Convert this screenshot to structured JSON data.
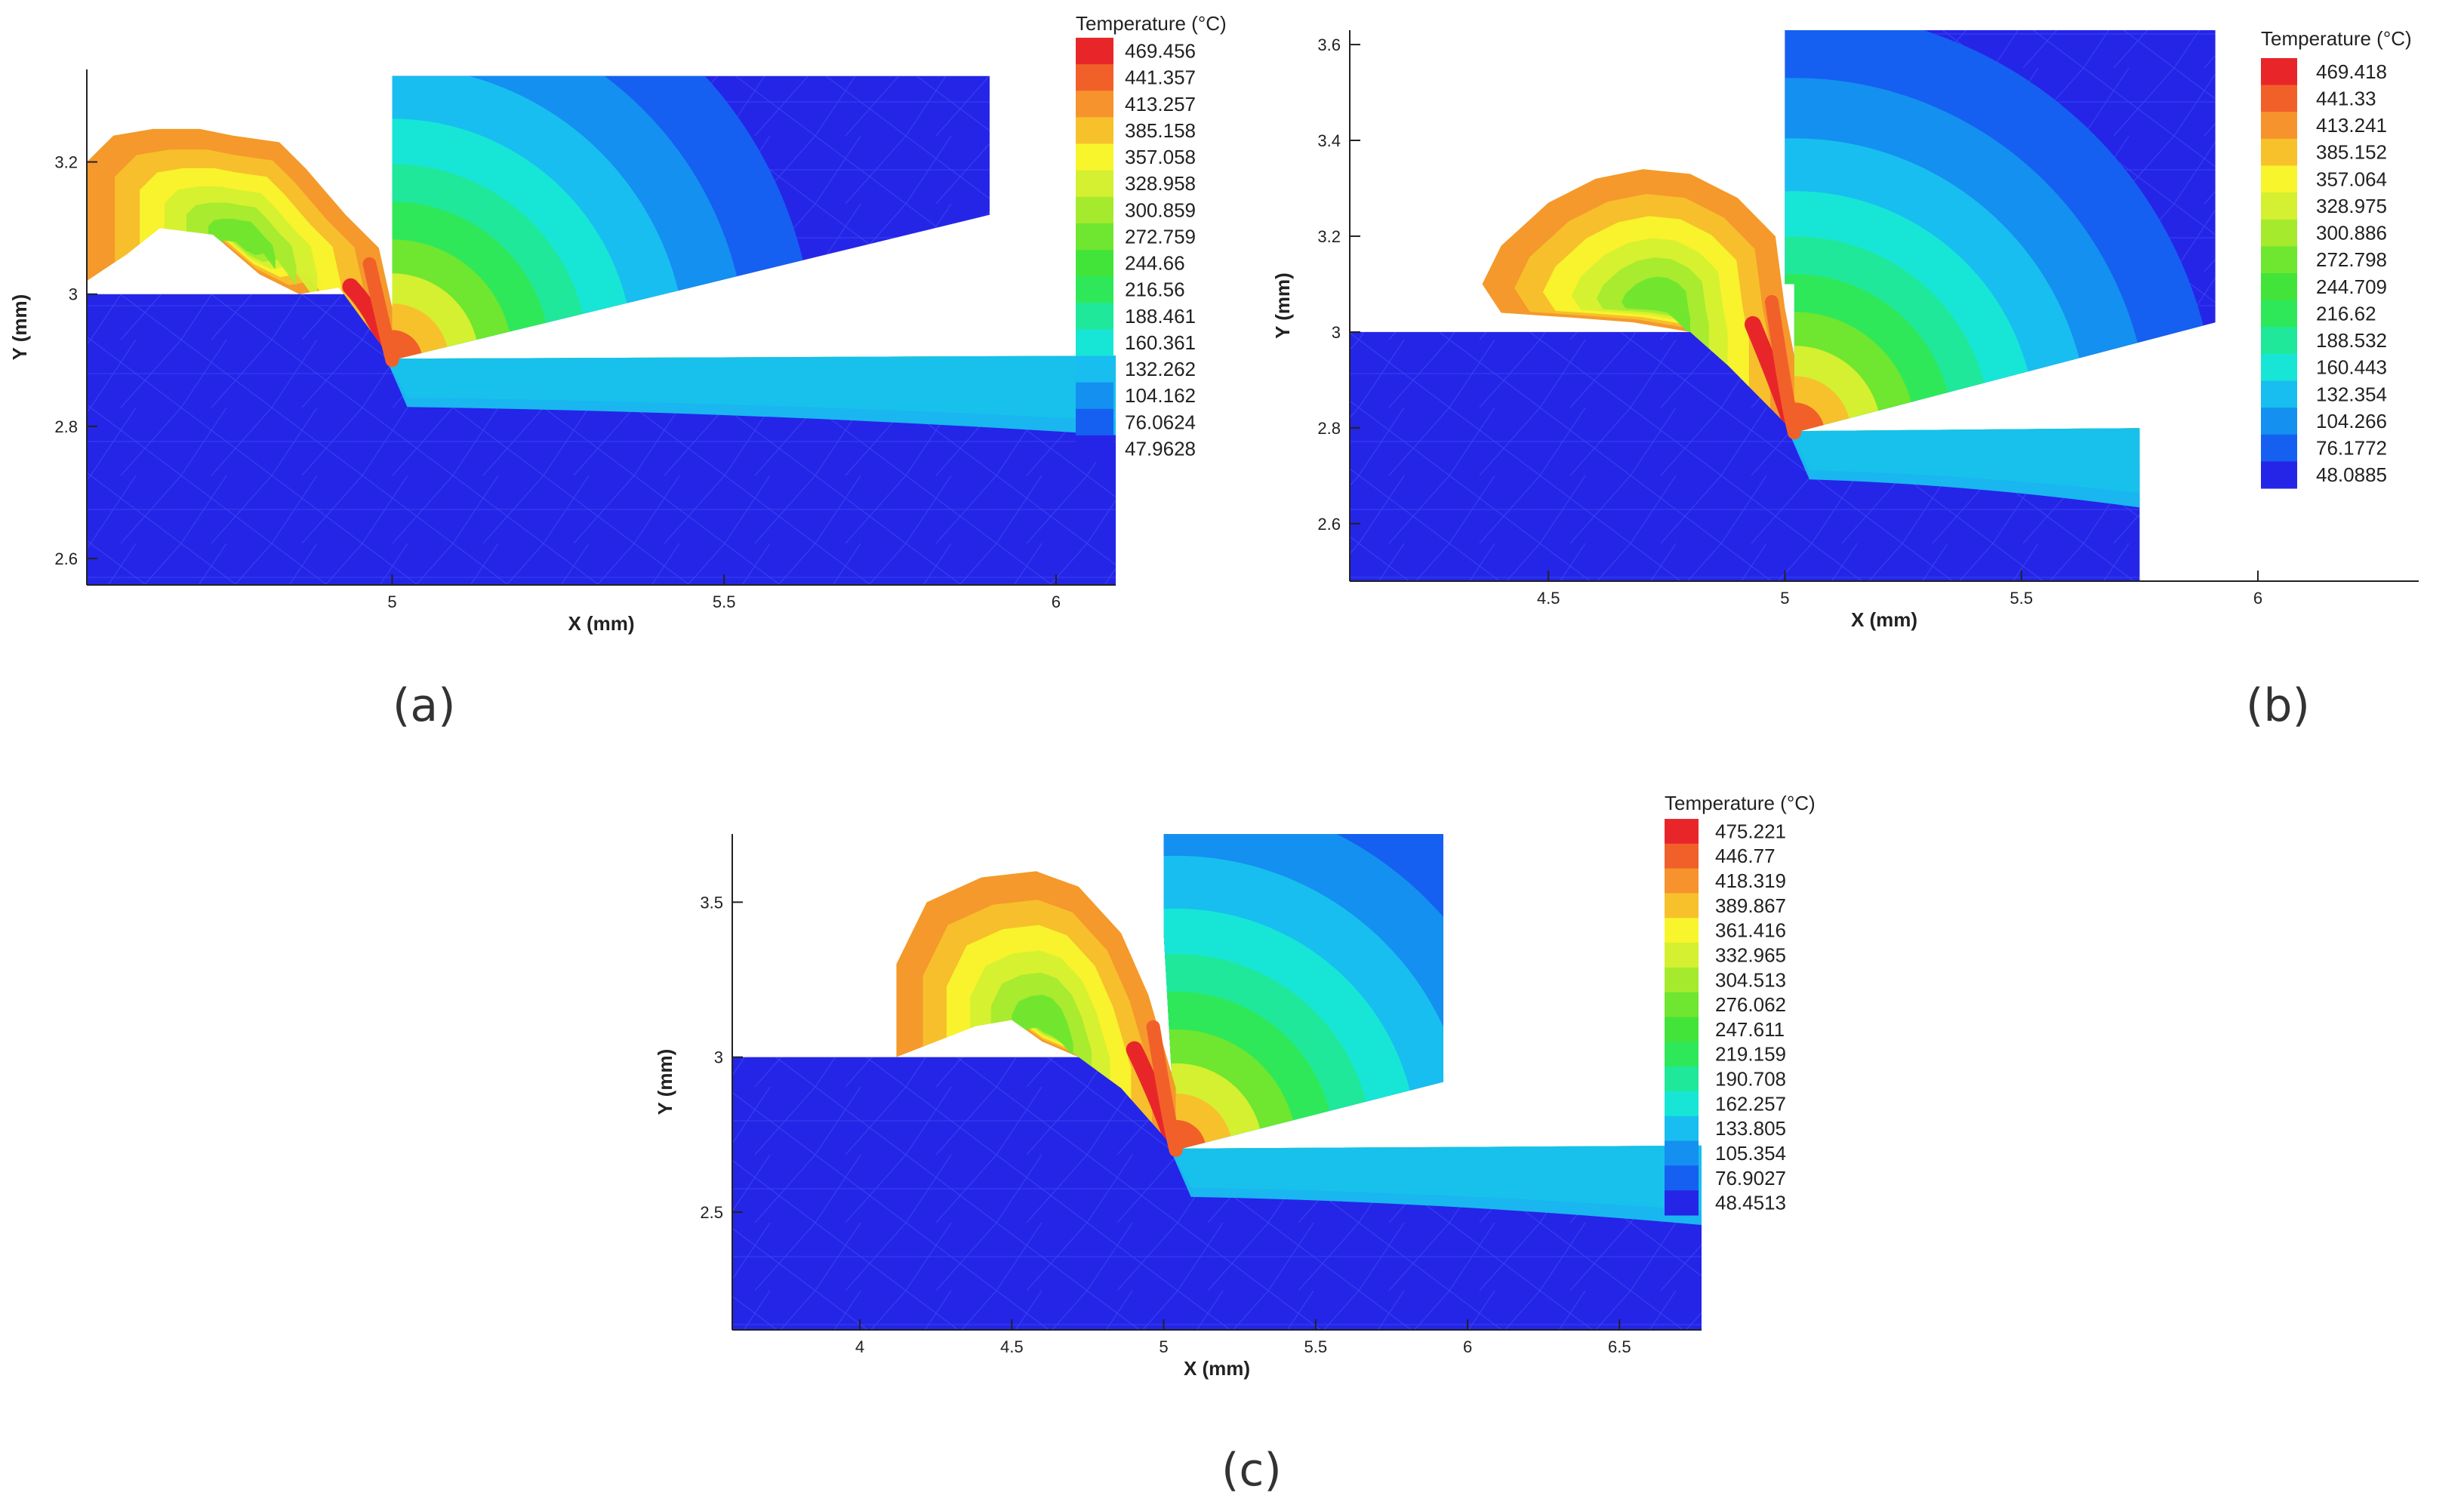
{
  "colors": {
    "scale": [
      "#2525e8",
      "#1560f0",
      "#1490f0",
      "#18bef0",
      "#17e6d6",
      "#1fe89a",
      "#2fe85a",
      "#43e43a",
      "#6fe62f",
      "#a6ea2e",
      "#d4f030",
      "#f8f52c",
      "#f7c12c",
      "#f7932c",
      "#f2602a",
      "#e8262a"
    ],
    "background": "#2525e8",
    "mesh": "#6a86ff"
  },
  "chart_data": [
    {
      "type": "heatmap",
      "panel": "(a)",
      "xlabel": "X (mm)",
      "ylabel": "Y (mm)",
      "xlim": [
        4.54,
        6.09
      ],
      "ylim": [
        2.56,
        3.34
      ],
      "xticks": [
        {
          "v": 5,
          "label": "5"
        },
        {
          "v": 5.5,
          "label": "5.5"
        },
        {
          "v": 6,
          "label": "6"
        }
      ],
      "yticks": [
        {
          "v": 2.6,
          "label": "2.6"
        },
        {
          "v": 2.8,
          "label": "2.8"
        },
        {
          "v": 3,
          "label": "3"
        },
        {
          "v": 3.2,
          "label": "3.2"
        }
      ],
      "legend_title": "Temperature (°C)",
      "legend_levels": [
        "469.456",
        "441.357",
        "413.257",
        "385.158",
        "357.058",
        "328.958",
        "300.859",
        "272.759",
        "244.66",
        "216.56",
        "188.461",
        "160.361",
        "132.262",
        "104.162",
        "76.0624",
        "47.9628"
      ],
      "tool_tip": [
        5.0,
        2.9
      ],
      "workpiece_top_y": 3.0,
      "cut_surface_y": 2.9,
      "tool_polygon": [
        [
          5.0,
          2.9
        ],
        [
          5.0,
          3.33
        ],
        [
          5.9,
          3.33
        ],
        [
          5.9,
          3.12
        ]
      ],
      "chip_polygon": [
        [
          4.92,
          3.01
        ],
        [
          4.86,
          3.0
        ],
        [
          4.8,
          3.03
        ],
        [
          4.73,
          3.09
        ],
        [
          4.65,
          3.1
        ],
        [
          4.6,
          3.06
        ],
        [
          4.54,
          3.02
        ],
        [
          4.54,
          3.2
        ],
        [
          4.58,
          3.24
        ],
        [
          4.64,
          3.25
        ],
        [
          4.71,
          3.25
        ],
        [
          4.76,
          3.24
        ],
        [
          4.83,
          3.23
        ],
        [
          4.87,
          3.19
        ],
        [
          4.93,
          3.12
        ],
        [
          4.98,
          3.07
        ],
        [
          5.0,
          2.98
        ],
        [
          5.0,
          2.9
        ]
      ]
    },
    {
      "type": "heatmap",
      "panel": "(b)",
      "xlabel": "X (mm)",
      "ylabel": "Y (mm)",
      "xlim": [
        4.08,
        6.34
      ],
      "ylim": [
        2.48,
        3.63
      ],
      "xticks": [
        {
          "v": 4.5,
          "label": "4.5"
        },
        {
          "v": 5,
          "label": "5"
        },
        {
          "v": 5.5,
          "label": "5.5"
        },
        {
          "v": 6,
          "label": "6"
        }
      ],
      "yticks": [
        {
          "v": 2.6,
          "label": "2.6"
        },
        {
          "v": 2.8,
          "label": "2.8"
        },
        {
          "v": 3,
          "label": "3"
        },
        {
          "v": 3.2,
          "label": "3.2"
        },
        {
          "v": 3.4,
          "label": "3.4"
        },
        {
          "v": 3.6,
          "label": "3.6"
        }
      ],
      "legend_title": "Temperature (°C)",
      "legend_levels": [
        "469.418",
        "441.33",
        "413.241",
        "385.152",
        "357.064",
        "328.975",
        "300.886",
        "272.798",
        "244.709",
        "216.62",
        "188.532",
        "160.443",
        "132.354",
        "104.266",
        "76.1772",
        "48.0885"
      ],
      "tool_tip": [
        5.02,
        2.79
      ],
      "workpiece_top_y": 3.0,
      "cut_surface_y": 2.79,
      "workpiece_right_x": 5.75,
      "tool_polygon": [
        [
          5.02,
          2.79
        ],
        [
          5.02,
          3.1
        ],
        [
          5.0,
          3.1
        ],
        [
          5.0,
          3.4
        ],
        [
          5.0,
          3.64
        ],
        [
          5.91,
          3.64
        ],
        [
          5.91,
          3.02
        ]
      ],
      "chip_polygon": [
        [
          4.8,
          3.0
        ],
        [
          4.68,
          3.02
        ],
        [
          4.55,
          3.03
        ],
        [
          4.4,
          3.04
        ],
        [
          4.36,
          3.1
        ],
        [
          4.4,
          3.18
        ],
        [
          4.5,
          3.27
        ],
        [
          4.6,
          3.32
        ],
        [
          4.7,
          3.34
        ],
        [
          4.8,
          3.33
        ],
        [
          4.9,
          3.28
        ],
        [
          4.98,
          3.2
        ],
        [
          5.0,
          3.05
        ],
        [
          5.02,
          2.95
        ],
        [
          5.02,
          2.79
        ],
        [
          4.95,
          2.86
        ],
        [
          4.88,
          2.93
        ]
      ]
    },
    {
      "type": "heatmap",
      "panel": "(c)",
      "xlabel": "X (mm)",
      "ylabel": "Y (mm)",
      "xlim": [
        3.58,
        6.77
      ],
      "ylim": [
        2.12,
        3.72
      ],
      "xticks": [
        {
          "v": 4,
          "label": "4"
        },
        {
          "v": 4.5,
          "label": "4.5"
        },
        {
          "v": 5,
          "label": "5"
        },
        {
          "v": 5.5,
          "label": "5.5"
        },
        {
          "v": 6,
          "label": "6"
        },
        {
          "v": 6.5,
          "label": "6.5"
        }
      ],
      "yticks": [
        {
          "v": 2.5,
          "label": "2.5"
        },
        {
          "v": 3,
          "label": "3"
        },
        {
          "v": 3.5,
          "label": "3.5"
        }
      ],
      "legend_title": "Temperature (°C)",
      "legend_levels": [
        "475.221",
        "446.77",
        "418.319",
        "389.867",
        "361.416",
        "332.965",
        "304.513",
        "276.062",
        "247.611",
        "219.159",
        "190.708",
        "162.257",
        "133.805",
        "105.354",
        "76.9027",
        "48.4513"
      ],
      "tool_tip": [
        5.04,
        2.7
      ],
      "workpiece_top_y": 3.0,
      "cut_surface_y": 2.7,
      "tool_polygon": [
        [
          5.04,
          2.7
        ],
        [
          5.0,
          3.4
        ],
        [
          5.0,
          3.72
        ],
        [
          5.92,
          3.72
        ],
        [
          5.92,
          2.92
        ]
      ],
      "chip_polygon": [
        [
          4.72,
          3.0
        ],
        [
          4.6,
          3.05
        ],
        [
          4.5,
          3.12
        ],
        [
          4.38,
          3.1
        ],
        [
          4.25,
          3.05
        ],
        [
          4.12,
          3.0
        ],
        [
          4.12,
          3.3
        ],
        [
          4.22,
          3.5
        ],
        [
          4.4,
          3.58
        ],
        [
          4.58,
          3.6
        ],
        [
          4.72,
          3.55
        ],
        [
          4.86,
          3.4
        ],
        [
          4.95,
          3.2
        ],
        [
          5.04,
          2.9
        ],
        [
          5.04,
          2.7
        ],
        [
          4.95,
          2.8
        ],
        [
          4.86,
          2.9
        ]
      ]
    }
  ],
  "captions": [
    "(a)",
    "(b)",
    "(c)"
  ]
}
